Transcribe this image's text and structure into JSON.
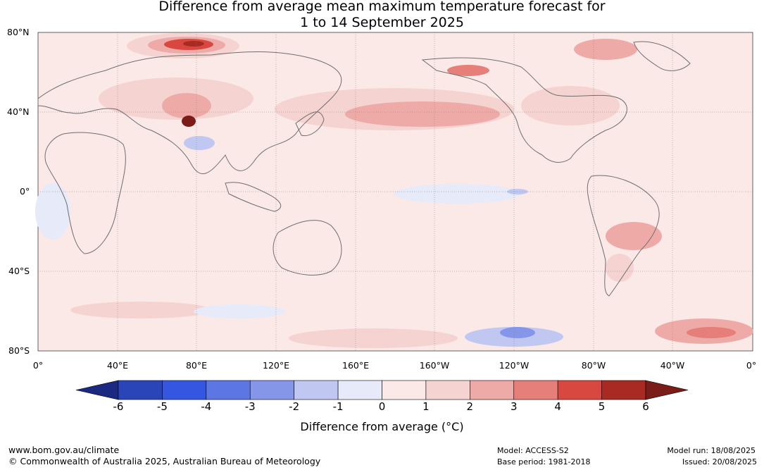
{
  "title_line1": "Difference from average mean maximum temperature forecast for",
  "title_line2": "1 to 14 September 2025",
  "lat_labels": [
    "80°N",
    "40°N",
    "0°",
    "40°S",
    "80°S"
  ],
  "lon_labels": [
    "0°",
    "40°E",
    "80°E",
    "120°E",
    "160°E",
    "160°W",
    "120°W",
    "80°W",
    "40°W",
    "0°"
  ],
  "legend": {
    "title": "Difference from average (°C)",
    "ticks": [
      "-6",
      "-5",
      "-4",
      "-3",
      "-2",
      "-1",
      "0",
      "1",
      "2",
      "3",
      "4",
      "5",
      "6"
    ],
    "colors": [
      "#1b2a80",
      "#2a45b8",
      "#3456e0",
      "#5c76e3",
      "#8596e8",
      "#c0c8f2",
      "#e6eaf9",
      "#fbe9e8",
      "#f5d3d0",
      "#eeaaa7",
      "#e67f79",
      "#d84840",
      "#a82a22",
      "#7a1c17"
    ]
  },
  "footer": {
    "url": "www.bom.gov.au/climate",
    "copyright": "© Commonwealth of Australia 2025, Australian Bureau of Meteorology",
    "model": "Model: ACCESS-S2",
    "base_period": "Base period: 1981-2018",
    "model_run": "Model run: 18/08/2025",
    "issued": "Issued: 20/08/2025"
  }
}
